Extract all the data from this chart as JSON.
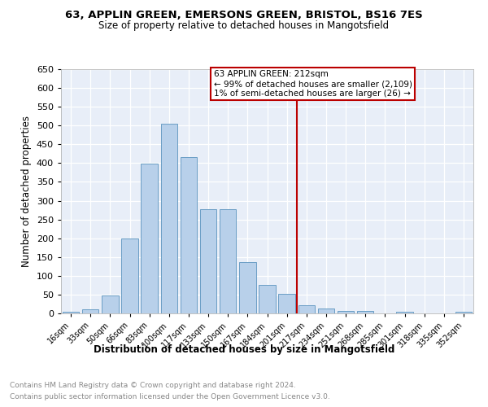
{
  "title": "63, APPLIN GREEN, EMERSONS GREEN, BRISTOL, BS16 7ES",
  "subtitle": "Size of property relative to detached houses in Mangotsfield",
  "xlabel": "Distribution of detached houses by size in Mangotsfield",
  "ylabel": "Number of detached properties",
  "categories": [
    "16sqm",
    "33sqm",
    "50sqm",
    "66sqm",
    "83sqm",
    "100sqm",
    "117sqm",
    "133sqm",
    "150sqm",
    "167sqm",
    "184sqm",
    "201sqm",
    "217sqm",
    "234sqm",
    "251sqm",
    "268sqm",
    "285sqm",
    "301sqm",
    "318sqm",
    "335sqm",
    "352sqm"
  ],
  "values": [
    5,
    10,
    47,
    200,
    398,
    505,
    417,
    277,
    277,
    137,
    75,
    52,
    22,
    12,
    6,
    6,
    0,
    5,
    0,
    0,
    5
  ],
  "bar_color": "#b8d0ea",
  "bar_edge_color": "#6a9ec5",
  "vline_color": "#bb0000",
  "vline_index": 12,
  "annotation_title": "63 APPLIN GREEN: 212sqm",
  "annotation_line1": "← 99% of detached houses are smaller (2,109)",
  "annotation_line2": "1% of semi-detached houses are larger (26) →",
  "annotation_box_color": "#bb0000",
  "ylim": [
    0,
    650
  ],
  "yticks": [
    0,
    50,
    100,
    150,
    200,
    250,
    300,
    350,
    400,
    450,
    500,
    550,
    600,
    650
  ],
  "footnote1": "Contains HM Land Registry data © Crown copyright and database right 2024.",
  "footnote2": "Contains public sector information licensed under the Open Government Licence v3.0.",
  "plot_bg_color": "#e8eef8"
}
